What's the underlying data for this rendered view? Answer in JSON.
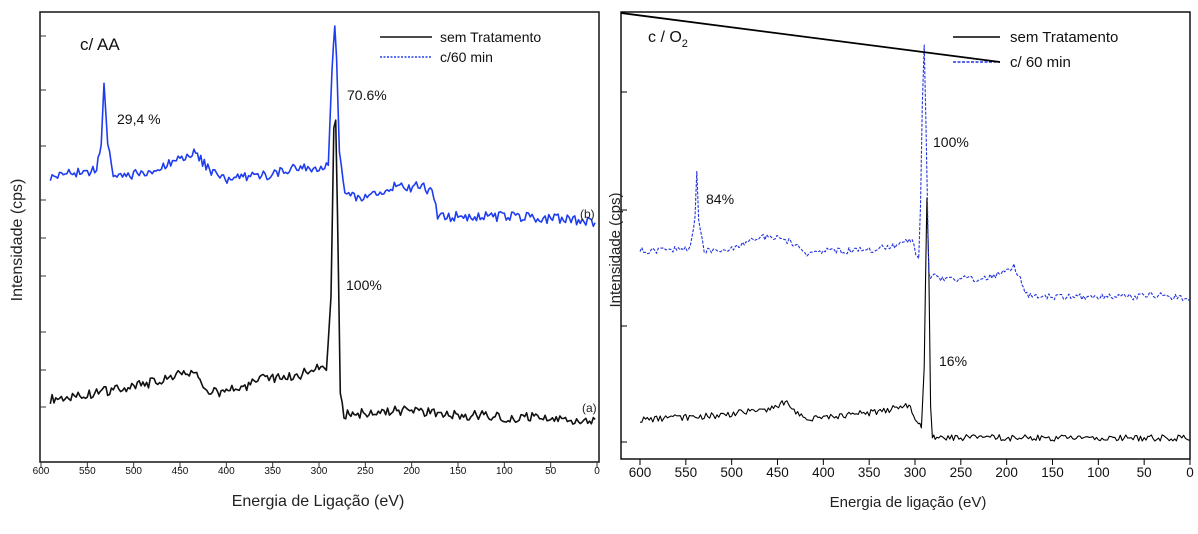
{
  "chart_data": [
    {
      "type": "line",
      "panel_label": "c/ AA",
      "xlabel": "Energia de Ligação (eV)",
      "ylabel": "Intensidade (cps)",
      "xlim": [
        600,
        0
      ],
      "x_ticks": [
        600,
        550,
        500,
        450,
        400,
        350,
        300,
        250,
        200,
        150,
        100,
        50,
        0
      ],
      "ylim": [
        0,
        1
      ],
      "y_tick_labels": "none",
      "grid": false,
      "legend_position": "top-right",
      "series": [
        {
          "name": "sem Tratamento",
          "curve_label": "(a)",
          "color": "#111111",
          "style": "solid",
          "x": [
            590,
            570,
            550,
            530,
            510,
            490,
            470,
            450,
            440,
            432,
            425,
            415,
            400,
            380,
            360,
            340,
            320,
            300,
            292,
            287,
            284,
            282,
            280,
            277,
            273,
            260,
            240,
            220,
            200,
            180,
            160,
            140,
            120,
            100,
            80,
            60,
            40,
            20,
            2
          ],
          "y": [
            0.1,
            0.105,
            0.11,
            0.12,
            0.125,
            0.135,
            0.145,
            0.16,
            0.165,
            0.16,
            0.125,
            0.115,
            0.12,
            0.13,
            0.15,
            0.15,
            0.16,
            0.175,
            0.17,
            0.35,
            0.75,
            0.78,
            0.55,
            0.12,
            0.06,
            0.065,
            0.065,
            0.07,
            0.075,
            0.065,
            0.06,
            0.06,
            0.06,
            0.055,
            0.055,
            0.055,
            0.05,
            0.05,
            0.05
          ]
        },
        {
          "name": "c/60 min",
          "curve_label": "(b)",
          "color": "#1f3df0",
          "style": "solid",
          "x": [
            590,
            570,
            550,
            540,
            535,
            532,
            528,
            522,
            510,
            490,
            470,
            450,
            435,
            420,
            405,
            380,
            360,
            340,
            320,
            300,
            290,
            286,
            283,
            281,
            278,
            272,
            250,
            230,
            215,
            205,
            195,
            185,
            178,
            172,
            160,
            140,
            120,
            100,
            80,
            60,
            40,
            20,
            2
          ],
          "y": [
            0.64,
            0.65,
            0.655,
            0.66,
            0.72,
            0.87,
            0.72,
            0.64,
            0.645,
            0.65,
            0.665,
            0.685,
            0.7,
            0.665,
            0.635,
            0.64,
            0.645,
            0.655,
            0.665,
            0.665,
            0.67,
            0.9,
            1.0,
            0.93,
            0.7,
            0.595,
            0.595,
            0.6,
            0.625,
            0.61,
            0.62,
            0.615,
            0.6,
            0.55,
            0.545,
            0.545,
            0.545,
            0.545,
            0.545,
            0.54,
            0.54,
            0.535,
            0.53
          ]
        }
      ],
      "annotations": [
        "29,4 %",
        "70.6%",
        "100%"
      ]
    },
    {
      "type": "line",
      "panel_label": "c / O",
      "panel_label_subscript": "2",
      "xlabel": "Energia de ligação (eV)",
      "ylabel": "Intensidade (cps)",
      "xlim": [
        600,
        0
      ],
      "x_ticks": [
        600,
        550,
        500,
        450,
        400,
        350,
        300,
        250,
        200,
        150,
        100,
        50,
        0
      ],
      "ylim": [
        0,
        1
      ],
      "y_tick_labels": "none",
      "grid": false,
      "legend_position": "top-right",
      "series": [
        {
          "name": "sem Tratamento",
          "color": "#000000",
          "style": "solid",
          "x": [
            600,
            560,
            520,
            480,
            460,
            445,
            438,
            430,
            420,
            400,
            380,
            360,
            340,
            320,
            310,
            305,
            298,
            293,
            290,
            287,
            285,
            283,
            281,
            278,
            260,
            240,
            200,
            150,
            100,
            50,
            5,
            0
          ],
          "y": [
            0.07,
            0.075,
            0.08,
            0.09,
            0.095,
            0.11,
            0.11,
            0.09,
            0.075,
            0.075,
            0.08,
            0.085,
            0.09,
            0.1,
            0.11,
            0.1,
            0.07,
            0.05,
            0.2,
            0.62,
            0.45,
            0.1,
            0.025,
            0.025,
            0.025,
            0.025,
            0.025,
            0.025,
            0.025,
            0.025,
            0.025,
            0.02
          ]
        },
        {
          "name": "c/ 60 min",
          "color": "#2233dd",
          "style": "dashed",
          "x": [
            600,
            580,
            560,
            545,
            540,
            538,
            536,
            530,
            510,
            490,
            475,
            460,
            445,
            430,
            420,
            400,
            380,
            360,
            340,
            320,
            310,
            303,
            299,
            296,
            294,
            292,
            290,
            288,
            285,
            270,
            250,
            230,
            210,
            200,
            192,
            185,
            180,
            160,
            140,
            120,
            100,
            80,
            60,
            40,
            20,
            0
          ],
          "y": [
            0.49,
            0.49,
            0.495,
            0.495,
            0.57,
            0.68,
            0.57,
            0.49,
            0.49,
            0.505,
            0.52,
            0.525,
            0.52,
            0.505,
            0.48,
            0.49,
            0.49,
            0.49,
            0.495,
            0.5,
            0.51,
            0.52,
            0.47,
            0.47,
            0.6,
            0.85,
            1.0,
            0.8,
            0.43,
            0.42,
            0.42,
            0.42,
            0.43,
            0.44,
            0.45,
            0.42,
            0.38,
            0.375,
            0.375,
            0.375,
            0.375,
            0.375,
            0.375,
            0.38,
            0.375,
            0.37
          ]
        }
      ],
      "annotations": [
        "16%",
        "84%",
        "100%"
      ]
    }
  ]
}
